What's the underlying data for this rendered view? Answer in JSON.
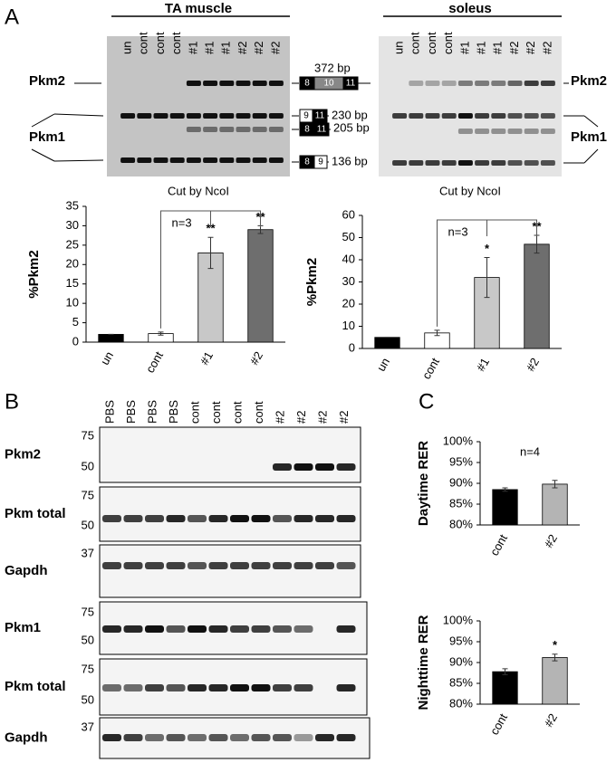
{
  "panel_labels": [
    "A",
    "B",
    "C"
  ],
  "gels": [
    {
      "title": "TA muscle",
      "lanes": [
        "un",
        "cont",
        "cont",
        "cont",
        "#1",
        "#1",
        "#1",
        "#2",
        "#2",
        "#2"
      ],
      "band_labels": [
        "Pkm2",
        "Pkm1"
      ],
      "caption": "Cut by NcoI"
    },
    {
      "title": "soleus",
      "lanes": [
        "un",
        "cont",
        "cont",
        "cont",
        "#1",
        "#1",
        "#1",
        "#2",
        "#2",
        "#2"
      ],
      "band_labels": [
        "Pkm2",
        "Pkm1"
      ],
      "caption": "Cut by NcoI"
    }
  ],
  "fragments": [
    {
      "size": "372 bp",
      "exons": [
        "8",
        "10",
        "11"
      ]
    },
    {
      "size": "230 bp",
      "exons": [
        "9",
        "11"
      ]
    },
    {
      "size": "205 bp",
      "exons": [
        "8",
        "11"
      ]
    },
    {
      "size": "136 bp",
      "exons": [
        "8",
        "9"
      ]
    }
  ],
  "blots": {
    "lanes": [
      "PBS",
      "PBS",
      "PBS",
      "PBS",
      "cont",
      "cont",
      "cont",
      "cont",
      "#2",
      "#2",
      "#2",
      "#2"
    ],
    "rows": [
      {
        "label": "Pkm2",
        "markers": [
          "75",
          "50"
        ]
      },
      {
        "label": "Pkm total",
        "markers": [
          "75",
          "50"
        ]
      },
      {
        "label": "Gapdh",
        "markers": [
          "37"
        ]
      },
      {
        "label": "Pkm1",
        "markers": [
          "75",
          "50"
        ]
      },
      {
        "label": "Pkm total",
        "markers": [
          "75",
          "50"
        ]
      },
      {
        "label": "Gapdh",
        "markers": [
          "37"
        ]
      }
    ]
  },
  "chart_data": [
    {
      "type": "bar",
      "y_label": "%Pkm2",
      "categories": [
        "un",
        "cont",
        "#1",
        "#2"
      ],
      "values": [
        2,
        2.2,
        23,
        29
      ],
      "errors": [
        0,
        0.4,
        4,
        1
      ],
      "colors": [
        "#000000",
        "#ffffff",
        "#c8c8c8",
        "#6e6e6e"
      ],
      "ylim": [
        0,
        35
      ],
      "yticks": [
        0,
        5,
        10,
        15,
        20,
        25,
        30,
        35
      ],
      "value_annotations": [
        null,
        null,
        "**",
        "**"
      ],
      "note": "n=3"
    },
    {
      "type": "bar",
      "y_label": "%Pkm2",
      "categories": [
        "un",
        "cont",
        "#1",
        "#2"
      ],
      "values": [
        5,
        7,
        32,
        47
      ],
      "errors": [
        0,
        1.2,
        9,
        4
      ],
      "colors": [
        "#000000",
        "#ffffff",
        "#c8c8c8",
        "#6e6e6e"
      ],
      "ylim": [
        0,
        60
      ],
      "yticks": [
        0,
        10,
        20,
        30,
        40,
        50,
        60
      ],
      "value_annotations": [
        null,
        null,
        "*",
        "**"
      ],
      "note": "n=3"
    },
    {
      "type": "bar",
      "y_label": "Daytime RER",
      "categories": [
        "cont",
        "#2"
      ],
      "values": [
        88.5,
        89.8
      ],
      "errors": [
        0.4,
        0.9
      ],
      "colors": [
        "#000000",
        "#b4b4b4"
      ],
      "ylim": [
        80,
        100
      ],
      "yticks": [
        {
          "value": 80,
          "label": "80%"
        },
        {
          "value": 85,
          "label": "85%"
        },
        {
          "value": 90,
          "label": "90%"
        },
        {
          "value": 95,
          "label": "95%"
        },
        {
          "value": 100,
          "label": "100%"
        }
      ],
      "note": "n=4"
    },
    {
      "type": "bar",
      "y_label": "Nighttime RER",
      "categories": [
        "cont",
        "#2"
      ],
      "values": [
        87.8,
        91.2
      ],
      "errors": [
        0.7,
        0.8
      ],
      "colors": [
        "#000000",
        "#b4b4b4"
      ],
      "ylim": [
        80,
        100
      ],
      "yticks": [
        {
          "value": 80,
          "label": "80%"
        },
        {
          "value": 85,
          "label": "85%"
        },
        {
          "value": 90,
          "label": "90%"
        },
        {
          "value": 95,
          "label": "95%"
        },
        {
          "value": 100,
          "label": "100%"
        }
      ],
      "value_annotations": [
        null,
        "*"
      ]
    }
  ]
}
